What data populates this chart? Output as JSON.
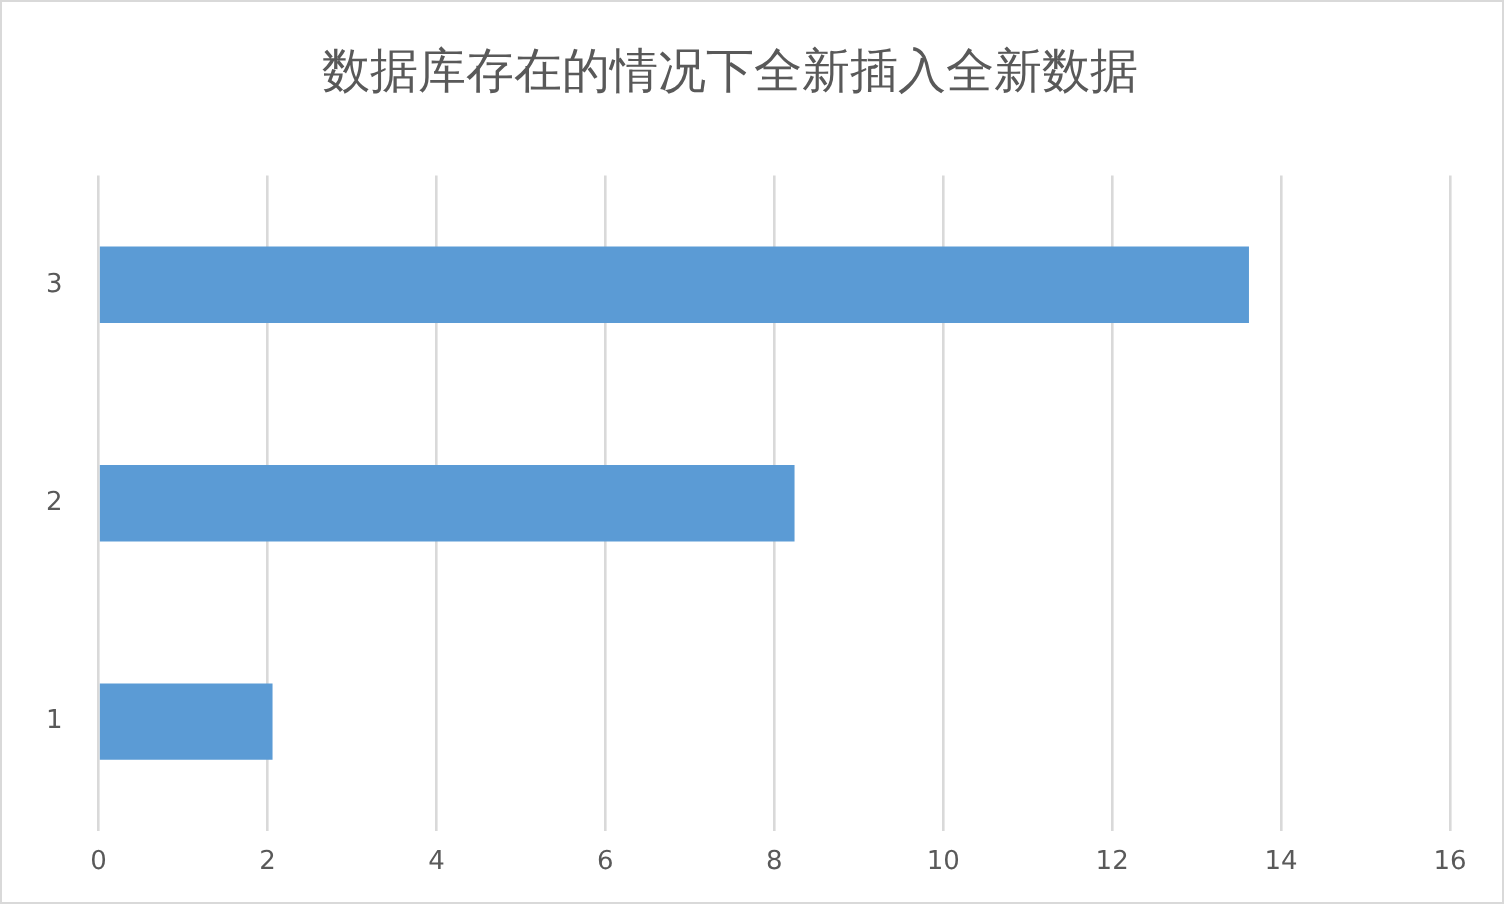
{
  "chart_data": {
    "type": "bar",
    "title": "数据库存在的情况下全新插入全新数据",
    "orientation": "horizontal",
    "categories": [
      "3",
      "2",
      "1"
    ],
    "values": [
      13.62,
      8.24,
      2.06
    ],
    "color": "#5b9bd5",
    "xlim": [
      0,
      16
    ],
    "xticks": [
      0,
      2,
      4,
      6,
      8,
      10,
      12,
      14,
      16
    ],
    "grid": "x",
    "legend": false
  }
}
